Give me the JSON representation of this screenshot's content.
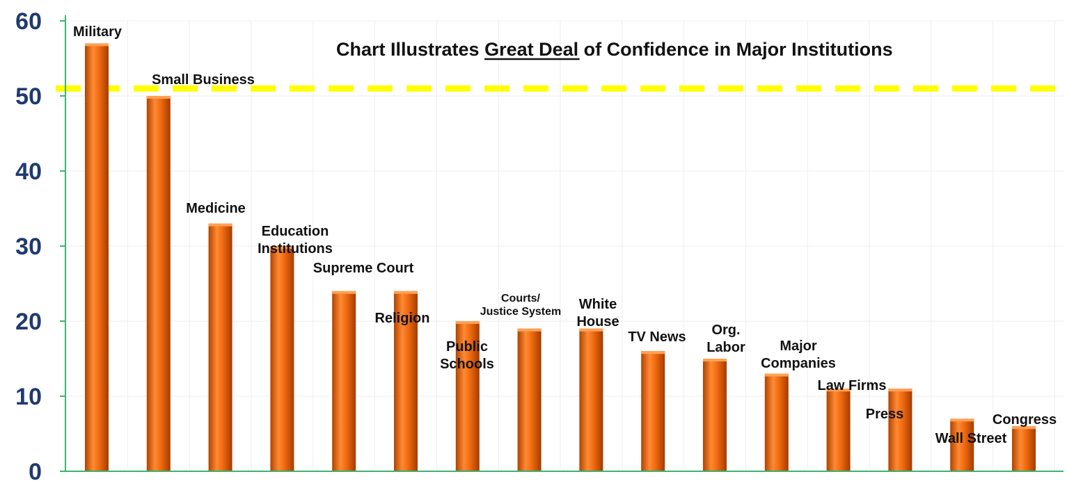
{
  "chart_data": {
    "type": "bar",
    "title_parts": [
      "Chart Illustrates ",
      "Great Deal ",
      "of Confidence in Major Institutions"
    ],
    "categories": [
      "Military",
      "Small Business",
      "Medicine",
      "Education Institutions",
      "Supreme Court",
      "Religion",
      "Public Schools",
      "Courts/ Justice System",
      "White House",
      "TV News",
      "Org. Labor",
      "Major Companies",
      "Law Firms",
      "Press",
      "Wall Street",
      "Congress"
    ],
    "values": [
      57,
      50,
      33,
      30,
      24,
      24,
      20,
      19,
      19,
      16,
      15,
      13,
      11,
      11,
      7,
      6
    ],
    "ylim": [
      0,
      60
    ],
    "yticks": [
      "0",
      "10",
      "20",
      "30",
      "40",
      "50",
      "60"
    ],
    "reference_line": {
      "value": 51,
      "style": "dashed",
      "color": "#ffff00"
    },
    "colors": {
      "bar": "#f06a10",
      "bar_dark": "#a83e00",
      "bar_light": "#ffa055",
      "axis": "#3cb371",
      "grid": "#eeeeee",
      "tick_text": "#1f3a6e"
    },
    "grid": true,
    "legend": "none"
  }
}
